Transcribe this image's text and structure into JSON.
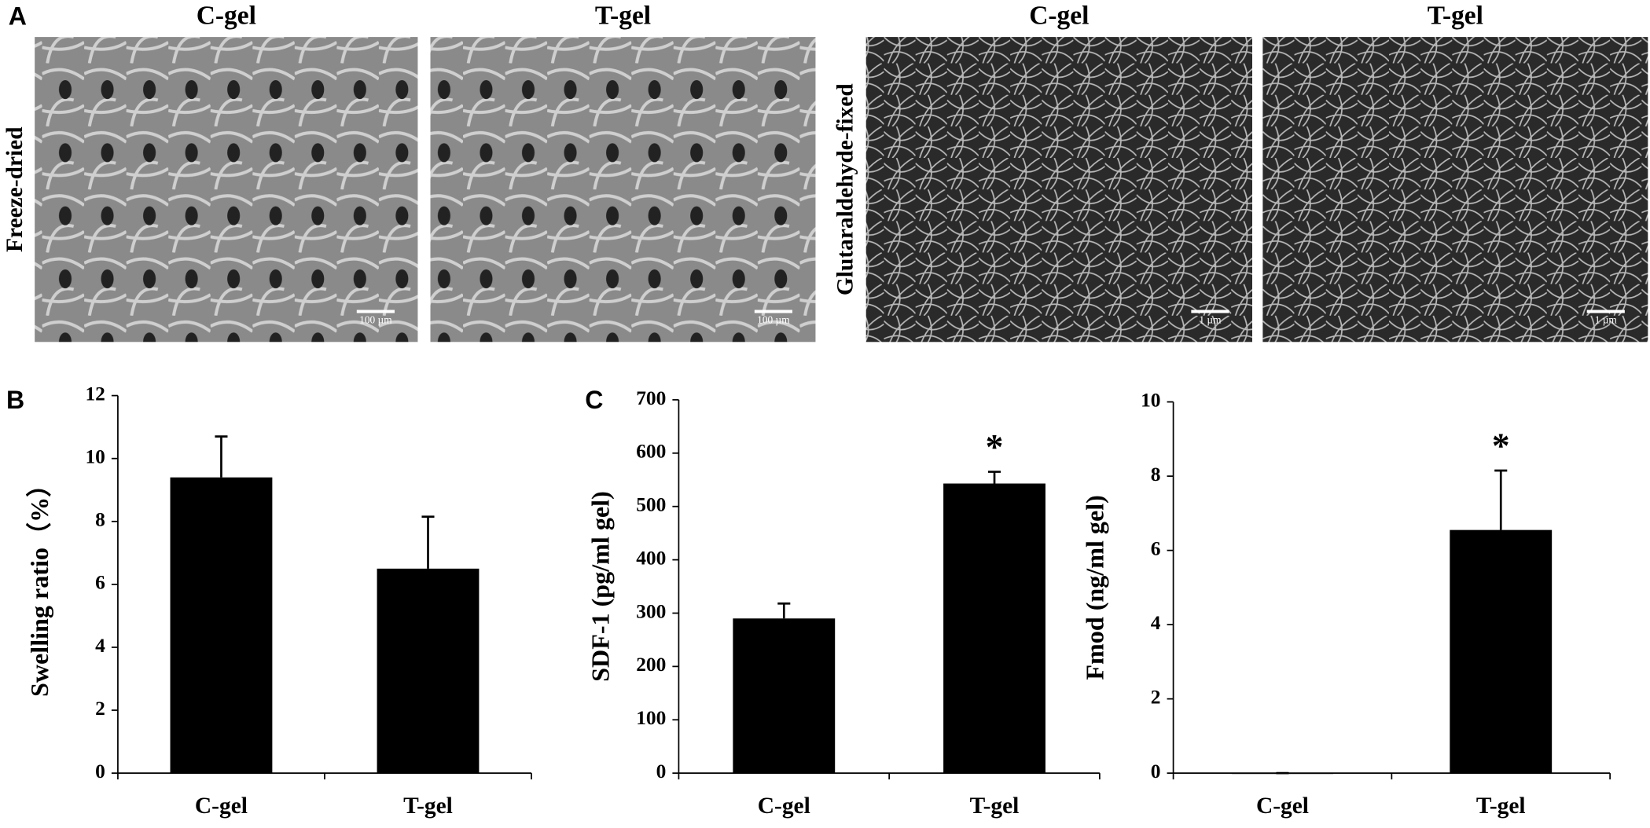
{
  "figure": {
    "panel_labels": [
      "A",
      "B",
      "C"
    ],
    "panel_a": {
      "columns": [
        "C-gel",
        "T-gel",
        "C-gel",
        "T-gel"
      ],
      "rows": [
        "Freeze-dried",
        "Glutaraldehyde-fixed"
      ],
      "scale_bars": [
        "100 µm",
        "100 µm",
        "1 µm",
        "1 µm"
      ]
    }
  },
  "chart_data": [
    {
      "type": "bar",
      "ylabel": "Swelling ratio（%）",
      "categories": [
        "C-gel",
        "T-gel"
      ],
      "values": [
        9.4,
        6.5
      ],
      "errors": [
        1.3,
        1.65
      ],
      "color": "#000000",
      "ylim": [
        0,
        12
      ],
      "yticks": [
        0,
        2,
        4,
        6,
        8,
        10,
        12
      ]
    },
    {
      "type": "bar",
      "ylabel": "SDF-1 (pg/ml gel)",
      "categories": [
        "C-gel",
        "T-gel"
      ],
      "values": [
        290,
        543
      ],
      "errors": [
        28,
        22
      ],
      "color": "#000000",
      "ylim": [
        0,
        700
      ],
      "yticks": [
        0,
        100,
        200,
        300,
        400,
        500,
        600,
        700
      ],
      "value_annotations": [
        null,
        "*"
      ]
    },
    {
      "type": "bar",
      "ylabel": "Fmod (ng/ml gel)",
      "categories": [
        "C-gel",
        "T-gel"
      ],
      "values": [
        0,
        6.55
      ],
      "errors": [
        0,
        1.6
      ],
      "color": "#000000",
      "ylim": [
        0,
        10
      ],
      "yticks": [
        0,
        2,
        4,
        6,
        8,
        10
      ],
      "value_annotations": [
        null,
        "*"
      ]
    }
  ]
}
